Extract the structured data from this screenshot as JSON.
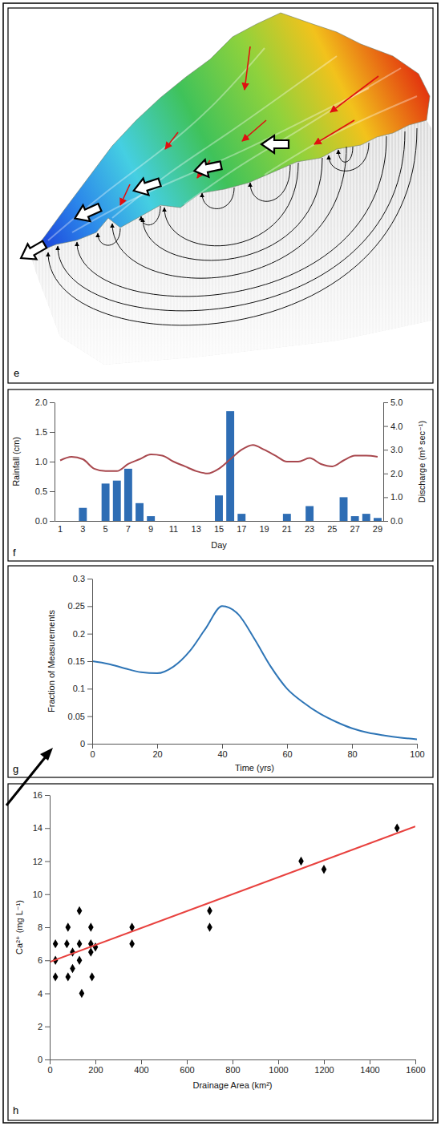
{
  "chart_data": [
    {
      "type": "diagram",
      "panel": "e"
    },
    {
      "type": "bar",
      "panel": "f",
      "x_label": "Day",
      "y_label": "Rainfall (cm)",
      "y2_label": "Discharge (m³ sec⁻¹)",
      "categories": [
        "1",
        null,
        "3",
        null,
        "5",
        null,
        "7",
        null,
        "9",
        null,
        "11",
        null,
        "13",
        null,
        "15",
        null,
        "17",
        null,
        "19",
        null,
        "21",
        null,
        "23",
        null,
        "25",
        null,
        "27",
        null,
        "29"
      ],
      "series": [
        {
          "type": "bar",
          "color": "#2e6db4",
          "values": [
            0,
            0,
            0.22,
            0,
            0.63,
            0.68,
            0.88,
            0.3,
            0.08,
            0,
            0,
            0,
            0,
            0,
            0.43,
            1.85,
            0.12,
            0,
            0,
            0,
            0.12,
            0,
            0.25,
            0,
            0,
            0.4,
            0.08,
            0.12,
            0.05
          ]
        },
        {
          "type": "line",
          "axis": "y2",
          "color": "#a8474d",
          "values": [
            2.55,
            2.7,
            2.6,
            2.2,
            2.1,
            2.1,
            2.4,
            2.6,
            2.8,
            2.75,
            2.5,
            2.3,
            2.1,
            2.0,
            2.2,
            2.6,
            3.0,
            3.2,
            3.0,
            2.75,
            2.5,
            2.5,
            2.65,
            2.4,
            2.3,
            2.55,
            2.75,
            2.75,
            2.7
          ]
        }
      ],
      "ylim": [
        0,
        2
      ],
      "yticks": [
        {
          "value": 0,
          "label": "0.0"
        },
        {
          "value": 0.5,
          "label": "0.5"
        },
        {
          "value": 1,
          "label": "1.0"
        },
        {
          "value": 1.5,
          "label": "1.5"
        },
        {
          "value": 2,
          "label": "2.0"
        }
      ],
      "y2lim": [
        0,
        5
      ],
      "y2ticks": [
        {
          "value": 0,
          "label": "0.0"
        },
        {
          "value": 1,
          "label": "1.0"
        },
        {
          "value": 2,
          "label": "2.0"
        },
        {
          "value": 3,
          "label": "3.0"
        },
        {
          "value": 4,
          "label": "4.0"
        },
        {
          "value": 5,
          "label": "5.0"
        }
      ],
      "grid": false
    },
    {
      "type": "line",
      "panel": "g",
      "x_label": "Time (yrs)",
      "y_label": "Fraction of Measurements",
      "x": [
        0,
        5,
        10,
        15,
        20,
        25,
        30,
        35,
        40,
        45,
        50,
        55,
        60,
        65,
        70,
        75,
        80,
        85,
        90,
        95,
        100
      ],
      "values": [
        0.15,
        0.145,
        0.137,
        0.13,
        0.128,
        0.14,
        0.168,
        0.21,
        0.25,
        0.235,
        0.19,
        0.14,
        0.1,
        0.075,
        0.055,
        0.04,
        0.028,
        0.02,
        0.015,
        0.011,
        0.008
      ],
      "color": "#2e75b6",
      "xlim": [
        0,
        100
      ],
      "xticks": [
        0,
        20,
        40,
        60,
        80,
        100
      ],
      "ylim": [
        0,
        0.3
      ],
      "yticks": [
        0,
        0.05,
        0.1,
        0.15,
        0.2,
        0.25,
        0.3
      ],
      "grid": false
    },
    {
      "type": "scatter",
      "panel": "h",
      "x_label": "Drainage Area (km²)",
      "y_label": "Ca²⁺ (mg L⁻¹)",
      "series": [
        {
          "type": "scatter",
          "marker": "diamond",
          "color": "#000000",
          "x": [
            25,
            25,
            25,
            75,
            80,
            80,
            100,
            100,
            130,
            130,
            130,
            140,
            180,
            180,
            180,
            185,
            200,
            360,
            360,
            700,
            700,
            1100,
            1200,
            1520
          ],
          "values": [
            7,
            6,
            5,
            7,
            8,
            5,
            5.5,
            6.5,
            9,
            7,
            6,
            4,
            8,
            7,
            6.5,
            5,
            6.8,
            8,
            7,
            9,
            8,
            12,
            11.5,
            14
          ]
        },
        {
          "type": "line",
          "color": "#e8423f",
          "x": [
            0,
            1600
          ],
          "values": [
            5.9,
            14.1
          ]
        }
      ],
      "xlim": [
        0,
        1600
      ],
      "xticks": [
        0,
        200,
        400,
        600,
        800,
        1000,
        1200,
        1400,
        1600
      ],
      "ylim": [
        0,
        16
      ],
      "yticks": [
        0,
        2,
        4,
        6,
        8,
        10,
        12,
        14,
        16
      ],
      "grid": false
    }
  ]
}
